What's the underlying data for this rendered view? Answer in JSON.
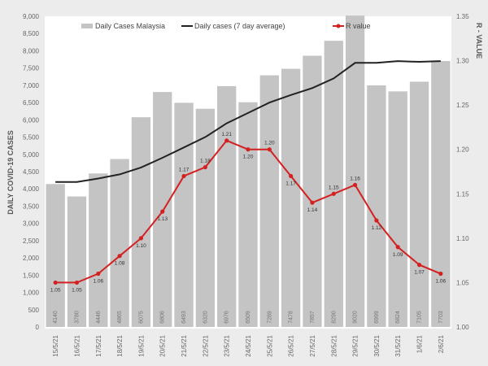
{
  "chart_data": {
    "type": "bar+line",
    "categories": [
      "15/5/21",
      "16/5/21",
      "17/5/21",
      "18/5/21",
      "19/5/21",
      "20/5/21",
      "21/5/21",
      "22/5/21",
      "23/5/21",
      "24/5/21",
      "25/5/21",
      "26/5/21",
      "27/5/21",
      "28/5/21",
      "29/5/21",
      "30/5/21",
      "31/5/21",
      "1/6/21",
      "2/6/21"
    ],
    "series": [
      {
        "name": "Daily Cases Malaysia",
        "type": "bar",
        "axis": "left",
        "color": "#c4c4c4",
        "values": [
          4140,
          3780,
          4446,
          4865,
          6075,
          6806,
          6493,
          6320,
          6976,
          6509,
          7289,
          7478,
          7857,
          8290,
          9020,
          6999,
          6824,
          7105,
          7703
        ]
      },
      {
        "name": "Daily cases (7 day average)",
        "type": "line",
        "axis": "left",
        "color": "#222222",
        "values": [
          4200,
          4200,
          4300,
          4420,
          4620,
          4900,
          5200,
          5500,
          5900,
          6200,
          6500,
          6720,
          6920,
          7200,
          7650,
          7650,
          7700,
          7680,
          7700
        ]
      },
      {
        "name": "R value",
        "type": "line",
        "axis": "right",
        "color": "#d42020",
        "values": [
          1.05,
          1.05,
          1.06,
          1.08,
          1.1,
          1.13,
          1.17,
          1.18,
          1.21,
          1.2,
          1.2,
          1.17,
          1.14,
          1.15,
          1.16,
          1.12,
          1.09,
          1.07,
          1.06
        ],
        "labels": [
          "1.05",
          "1.05",
          "1.06",
          "1.08",
          "1.10",
          "1.13",
          "1.17",
          "1.18",
          "1.21",
          "1.20",
          "1.20",
          "1.17",
          "1.14",
          "1.15",
          "1.16",
          "1.12",
          "1.09",
          "1.07",
          "1.06"
        ]
      }
    ],
    "ylabel": "DAILY COVID-19 CASES",
    "y2label": "R - VALUE",
    "ylim": [
      0,
      9000
    ],
    "y2lim": [
      1.0,
      1.35
    ],
    "yticks": [
      "0",
      "500",
      "1,000",
      "1,500",
      "2,000",
      "2,500",
      "3,000",
      "3,500",
      "4,000",
      "4,500",
      "5,000",
      "5,500",
      "6,000",
      "6,500",
      "7,000",
      "7,500",
      "8,000",
      "8,500",
      "9,000"
    ],
    "y2ticks": [
      "1.00",
      "1.05",
      "1.10",
      "1.15",
      "1.20",
      "1.25",
      "1.30",
      "1.35"
    ],
    "legend": "top",
    "grid": false
  }
}
